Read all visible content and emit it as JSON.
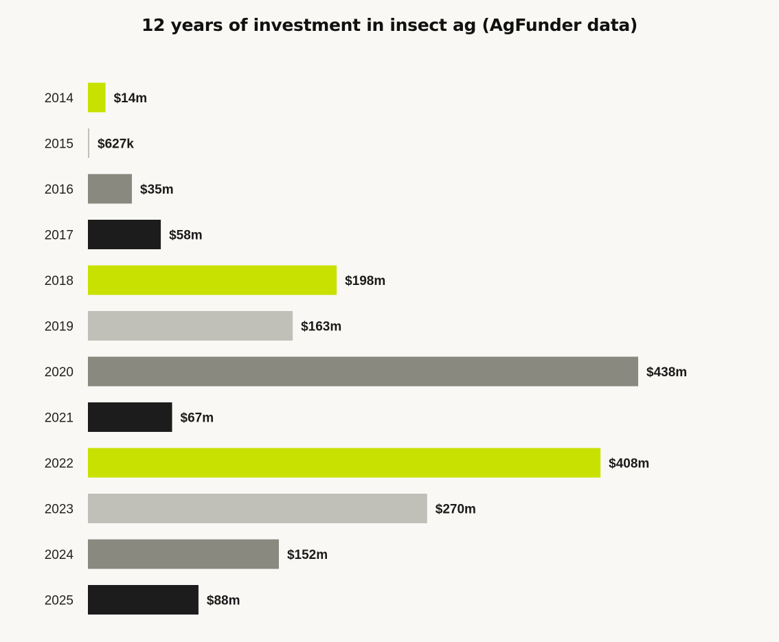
{
  "chart_data": {
    "type": "bar",
    "orientation": "horizontal",
    "title": "12 years of investment in insect ag (AgFunder data)",
    "xlabel": "",
    "ylabel": "",
    "unit": "USD millions",
    "categories": [
      "2014",
      "2015",
      "2016",
      "2017",
      "2018",
      "2019",
      "2020",
      "2021",
      "2022",
      "2023",
      "2024",
      "2025"
    ],
    "values": [
      14,
      0.627,
      35,
      58,
      198,
      163,
      438,
      67,
      408,
      270,
      152,
      88
    ],
    "labels": [
      "$14m",
      "$627k",
      "$35m",
      "$58m",
      "$198m",
      "$163m",
      "$438m",
      "$67m",
      "$408m",
      "$270m",
      "$152m",
      "$88m"
    ],
    "colors": [
      "#c8e100",
      "#c0bfb8",
      "#8a897f",
      "#1c1c1c",
      "#c8e100",
      "#c0bfb8",
      "#8a897f",
      "#1c1c1c",
      "#c8e100",
      "#c0bfb8",
      "#8a897f",
      "#1c1c1c"
    ],
    "xlim": [
      0,
      438
    ],
    "grid": false,
    "legend": "none"
  }
}
